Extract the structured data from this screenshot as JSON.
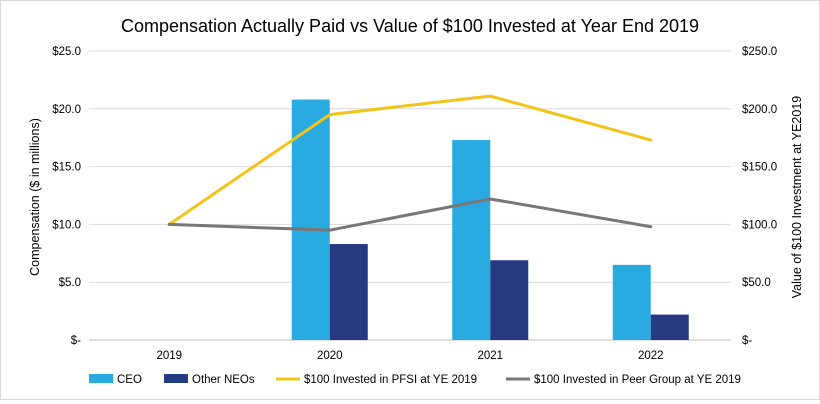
{
  "chart_data": {
    "type": "bar+line",
    "title": "Compensation Actually Paid vs Value of $100 Invested at Year End 2019",
    "categories": [
      "2019",
      "2020",
      "2021",
      "2022"
    ],
    "ylabel_left": "Compensation  ($ in millions)",
    "ylabel_right": "Value of $100 Investment at YE2019",
    "ylim_left": [
      0,
      25
    ],
    "ylim_right": [
      0,
      250
    ],
    "yticks_left": [
      "$-",
      "$5.0",
      "$10.0",
      "$15.0",
      "$20.0",
      "$25.0"
    ],
    "yticks_right": [
      "$-",
      "$50.0",
      "$100.0",
      "$150.0",
      "$200.0",
      "$250.0"
    ],
    "grid": true,
    "legend_position": "bottom",
    "bar_series": [
      {
        "name": "CEO",
        "color": "#29abe2",
        "values": [
          null,
          20.8,
          17.3,
          6.5
        ]
      },
      {
        "name": "Other NEOs",
        "color": "#253a80",
        "values": [
          null,
          8.3,
          6.9,
          2.2
        ]
      }
    ],
    "line_series": [
      {
        "name": "$100 Invested in PFSI at YE 2019",
        "color": "#f0c419",
        "values": [
          100,
          195,
          211,
          173
        ]
      },
      {
        "name": "$100 Invested in Peer Group at YE 2019",
        "color": "#777777",
        "values": [
          100,
          95,
          122,
          98
        ]
      }
    ]
  }
}
